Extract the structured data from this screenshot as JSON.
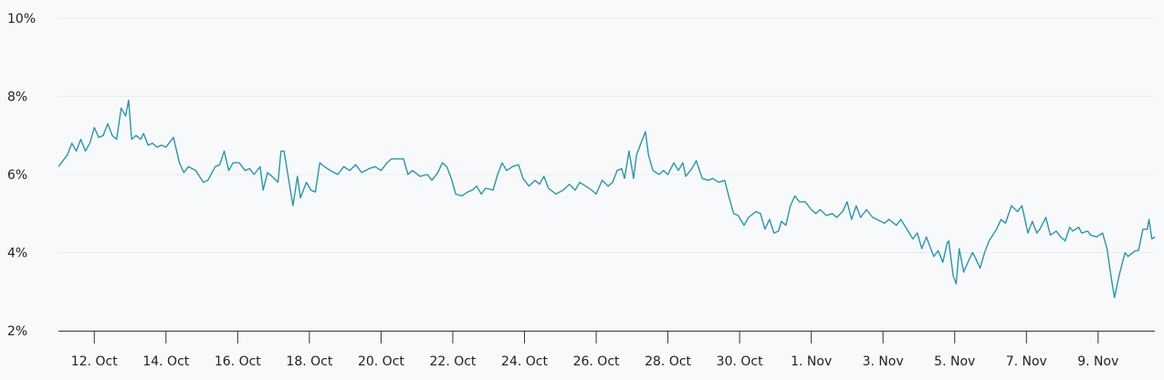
{
  "chart_data": {
    "type": "line",
    "title": "",
    "xlabel": "",
    "ylabel": "",
    "ylim": [
      2,
      10
    ],
    "y_ticks": [
      "2%",
      "4%",
      "6%",
      "8%",
      "10%"
    ],
    "y_tick_values": [
      2,
      4,
      6,
      8,
      10
    ],
    "x_ticks": [
      "12. Oct",
      "14. Oct",
      "16. Oct",
      "18. Oct",
      "20. Oct",
      "22. Oct",
      "24. Oct",
      "26. Oct",
      "28. Oct",
      "30. Oct",
      "1. Nov",
      "3. Nov",
      "5. Nov",
      "7. Nov",
      "9. Nov"
    ],
    "x_tick_dates": [
      "12 Oct",
      "14 Oct",
      "16 Oct",
      "18 Oct",
      "20 Oct",
      "22 Oct",
      "24 Oct",
      "26 Oct",
      "28 Oct",
      "30 Oct",
      "1 Nov",
      "3 Nov",
      "5 Nov",
      "7 Nov",
      "9 Nov"
    ],
    "xlim": [
      "11 Oct 00:00",
      "10 Nov 14:00"
    ],
    "grid": "horizontal",
    "line_color": "#2b96a8",
    "series": [
      {
        "points": [
          [
            "11 Oct 00:00",
            6.2
          ],
          [
            "11 Oct 06:00",
            6.5
          ],
          [
            "11 Oct 09:00",
            6.8
          ],
          [
            "11 Oct 12:00",
            6.6
          ],
          [
            "11 Oct 15:00",
            6.9
          ],
          [
            "11 Oct 18:00",
            6.6
          ],
          [
            "11 Oct 21:00",
            6.8
          ],
          [
            "12 Oct 00:00",
            7.2
          ],
          [
            "12 Oct 03:00",
            6.95
          ],
          [
            "12 Oct 06:00",
            7.0
          ],
          [
            "12 Oct 09:00",
            7.3
          ],
          [
            "12 Oct 12:00",
            7.0
          ],
          [
            "12 Oct 15:00",
            6.9
          ],
          [
            "12 Oct 18:00",
            7.7
          ],
          [
            "12 Oct 21:00",
            7.5
          ],
          [
            "12 Oct 23:00",
            7.9
          ],
          [
            "13 Oct 01:00",
            6.9
          ],
          [
            "13 Oct 04:00",
            7.0
          ],
          [
            "13 Oct 07:00",
            6.9
          ],
          [
            "13 Oct 09:00",
            7.05
          ],
          [
            "13 Oct 12:00",
            6.75
          ],
          [
            "13 Oct 15:00",
            6.8
          ],
          [
            "13 Oct 18:00",
            6.7
          ],
          [
            "13 Oct 21:00",
            6.75
          ],
          [
            "14 Oct 00:00",
            6.7
          ],
          [
            "14 Oct 05:00",
            6.95
          ],
          [
            "14 Oct 09:00",
            6.3
          ],
          [
            "14 Oct 12:00",
            6.05
          ],
          [
            "14 Oct 15:00",
            6.2
          ],
          [
            "14 Oct 20:00",
            6.1
          ],
          [
            "15 Oct 01:00",
            5.8
          ],
          [
            "15 Oct 04:00",
            5.85
          ],
          [
            "15 Oct 09:00",
            6.2
          ],
          [
            "15 Oct 12:00",
            6.25
          ],
          [
            "15 Oct 15:00",
            6.6
          ],
          [
            "15 Oct 18:00",
            6.1
          ],
          [
            "15 Oct 21:00",
            6.3
          ],
          [
            "16 Oct 01:00",
            6.3
          ],
          [
            "16 Oct 05:00",
            6.1
          ],
          [
            "16 Oct 08:00",
            6.15
          ],
          [
            "16 Oct 11:00",
            6.0
          ],
          [
            "16 Oct 15:00",
            6.2
          ],
          [
            "16 Oct 17:00",
            5.6
          ],
          [
            "16 Oct 20:00",
            6.05
          ],
          [
            "16 Oct 23:00",
            5.95
          ],
          [
            "17 Oct 03:00",
            5.8
          ],
          [
            "17 Oct 05:00",
            6.6
          ],
          [
            "17 Oct 07:00",
            6.6
          ],
          [
            "17 Oct 10:00",
            5.9
          ],
          [
            "17 Oct 13:00",
            5.2
          ],
          [
            "17 Oct 16:00",
            5.95
          ],
          [
            "17 Oct 18:00",
            5.4
          ],
          [
            "17 Oct 22:00",
            5.8
          ],
          [
            "18 Oct 01:00",
            5.6
          ],
          [
            "18 Oct 04:00",
            5.55
          ],
          [
            "18 Oct 07:00",
            6.3
          ],
          [
            "18 Oct 10:00",
            6.2
          ],
          [
            "18 Oct 14:00",
            6.1
          ],
          [
            "18 Oct 19:00",
            6.0
          ],
          [
            "18 Oct 23:00",
            6.2
          ],
          [
            "19 Oct 03:00",
            6.1
          ],
          [
            "19 Oct 07:00",
            6.25
          ],
          [
            "19 Oct 11:00",
            6.05
          ],
          [
            "19 Oct 16:00",
            6.15
          ],
          [
            "19 Oct 20:00",
            6.2
          ],
          [
            "20 Oct 00:00",
            6.1
          ],
          [
            "20 Oct 04:00",
            6.3
          ],
          [
            "20 Oct 07:00",
            6.4
          ],
          [
            "20 Oct 11:00",
            6.4
          ],
          [
            "20 Oct 15:00",
            6.4
          ],
          [
            "20 Oct 18:00",
            6.0
          ],
          [
            "20 Oct 21:00",
            6.1
          ],
          [
            "21 Oct 02:00",
            5.95
          ],
          [
            "21 Oct 07:00",
            6.0
          ],
          [
            "21 Oct 10:00",
            5.85
          ],
          [
            "21 Oct 14:00",
            6.05
          ],
          [
            "21 Oct 17:00",
            6.3
          ],
          [
            "21 Oct 20:00",
            6.2
          ],
          [
            "21 Oct 23:00",
            5.9
          ],
          [
            "22 Oct 02:00",
            5.5
          ],
          [
            "22 Oct 06:00",
            5.45
          ],
          [
            "22 Oct 10:00",
            5.55
          ],
          [
            "22 Oct 13:00",
            5.6
          ],
          [
            "22 Oct 16:00",
            5.7
          ],
          [
            "22 Oct 19:00",
            5.5
          ],
          [
            "22 Oct 22:00",
            5.65
          ],
          [
            "23 Oct 03:00",
            5.6
          ],
          [
            "23 Oct 06:00",
            6.0
          ],
          [
            "23 Oct 09:00",
            6.3
          ],
          [
            "23 Oct 12:00",
            6.1
          ],
          [
            "23 Oct 16:00",
            6.2
          ],
          [
            "23 Oct 20:00",
            6.25
          ],
          [
            "23 Oct 23:00",
            5.9
          ],
          [
            "24 Oct 03:00",
            5.7
          ],
          [
            "24 Oct 07:00",
            5.85
          ],
          [
            "24 Oct 10:00",
            5.75
          ],
          [
            "24 Oct 13:00",
            5.95
          ],
          [
            "24 Oct 16:00",
            5.65
          ],
          [
            "24 Oct 21:00",
            5.5
          ],
          [
            "25 Oct 02:00",
            5.6
          ],
          [
            "25 Oct 06:00",
            5.75
          ],
          [
            "25 Oct 10:00",
            5.6
          ],
          [
            "25 Oct 13:00",
            5.8
          ],
          [
            "25 Oct 17:00",
            5.7
          ],
          [
            "25 Oct 21:00",
            5.6
          ],
          [
            "26 Oct 00:00",
            5.5
          ],
          [
            "26 Oct 04:00",
            5.85
          ],
          [
            "26 Oct 08:00",
            5.7
          ],
          [
            "26 Oct 11:00",
            5.8
          ],
          [
            "26 Oct 14:00",
            6.1
          ],
          [
            "26 Oct 17:00",
            6.15
          ],
          [
            "26 Oct 19:00",
            5.9
          ],
          [
            "26 Oct 22:00",
            6.6
          ],
          [
            "27 Oct 01:00",
            5.9
          ],
          [
            "27 Oct 03:00",
            6.5
          ],
          [
            "27 Oct 06:00",
            6.8
          ],
          [
            "27 Oct 09:00",
            7.1
          ],
          [
            "27 Oct 11:00",
            6.5
          ],
          [
            "27 Oct 14:00",
            6.1
          ],
          [
            "27 Oct 18:00",
            6.0
          ],
          [
            "27 Oct 21:00",
            6.1
          ],
          [
            "28 Oct 00:00",
            6.0
          ],
          [
            "28 Oct 04:00",
            6.3
          ],
          [
            "28 Oct 07:00",
            6.1
          ],
          [
            "28 Oct 10:00",
            6.3
          ],
          [
            "28 Oct 12:00",
            5.95
          ],
          [
            "28 Oct 16:00",
            6.15
          ],
          [
            "28 Oct 19:00",
            6.35
          ],
          [
            "28 Oct 23:00",
            5.9
          ],
          [
            "29 Oct 03:00",
            5.85
          ],
          [
            "29 Oct 06:00",
            5.9
          ],
          [
            "29 Oct 10:00",
            5.8
          ],
          [
            "29 Oct 14:00",
            5.85
          ],
          [
            "29 Oct 17:00",
            5.4
          ],
          [
            "29 Oct 20:00",
            5.0
          ],
          [
            "29 Oct 23:00",
            4.95
          ],
          [
            "30 Oct 03:00",
            4.7
          ],
          [
            "30 Oct 06:00",
            4.9
          ],
          [
            "30 Oct 11:00",
            5.05
          ],
          [
            "30 Oct 14:00",
            5.0
          ],
          [
            "30 Oct 17:00",
            4.6
          ],
          [
            "30 Oct 20:00",
            4.85
          ],
          [
            "30 Oct 23:00",
            4.5
          ],
          [
            "31 Oct 02:00",
            4.55
          ],
          [
            "31 Oct 04:00",
            4.8
          ],
          [
            "31 Oct 07:00",
            4.7
          ],
          [
            "31 Oct 10:00",
            5.2
          ],
          [
            "31 Oct 13:00",
            5.45
          ],
          [
            "31 Oct 16:00",
            5.3
          ],
          [
            "31 Oct 20:00",
            5.3
          ],
          [
            "1 Nov 00:00",
            5.1
          ],
          [
            "1 Nov 03:00",
            5.0
          ],
          [
            "1 Nov 06:00",
            5.1
          ],
          [
            "1 Nov 10:00",
            4.95
          ],
          [
            "1 Nov 14:00",
            5.0
          ],
          [
            "1 Nov 17:00",
            4.9
          ],
          [
            "1 Nov 21:00",
            5.05
          ],
          [
            "2 Nov 00:00",
            5.3
          ],
          [
            "2 Nov 03:00",
            4.85
          ],
          [
            "2 Nov 06:00",
            5.2
          ],
          [
            "2 Nov 09:00",
            4.9
          ],
          [
            "2 Nov 13:00",
            5.1
          ],
          [
            "2 Nov 17:00",
            4.9
          ],
          [
            "2 Nov 20:00",
            4.85
          ],
          [
            "3 Nov 01:00",
            4.75
          ],
          [
            "3 Nov 04:00",
            4.85
          ],
          [
            "3 Nov 09:00",
            4.7
          ],
          [
            "3 Nov 12:00",
            4.85
          ],
          [
            "3 Nov 16:00",
            4.6
          ],
          [
            "3 Nov 20:00",
            4.35
          ],
          [
            "3 Nov 23:00",
            4.5
          ],
          [
            "4 Nov 02:00",
            4.1
          ],
          [
            "4 Nov 05:00",
            4.4
          ],
          [
            "4 Nov 07:00",
            4.2
          ],
          [
            "4 Nov 10:00",
            3.9
          ],
          [
            "4 Nov 13:00",
            4.05
          ],
          [
            "4 Nov 16:00",
            3.75
          ],
          [
            "4 Nov 19:00",
            4.25
          ],
          [
            "4 Nov 20:00",
            4.3
          ],
          [
            "4 Nov 23:00",
            3.4
          ],
          [
            "5 Nov 01:00",
            3.2
          ],
          [
            "5 Nov 03:00",
            4.1
          ],
          [
            "5 Nov 06:00",
            3.5
          ],
          [
            "5 Nov 10:00",
            3.85
          ],
          [
            "5 Nov 12:00",
            4.0
          ],
          [
            "5 Nov 14:00",
            3.85
          ],
          [
            "5 Nov 17:00",
            3.6
          ],
          [
            "5 Nov 20:00",
            4.0
          ],
          [
            "5 Nov 23:00",
            4.3
          ],
          [
            "6 Nov 04:00",
            4.6
          ],
          [
            "6 Nov 07:00",
            4.85
          ],
          [
            "6 Nov 10:00",
            4.75
          ],
          [
            "6 Nov 14:00",
            5.2
          ],
          [
            "6 Nov 18:00",
            5.05
          ],
          [
            "6 Nov 21:00",
            5.2
          ],
          [
            "7 Nov 01:00",
            4.5
          ],
          [
            "7 Nov 04:00",
            4.8
          ],
          [
            "7 Nov 07:00",
            4.5
          ],
          [
            "7 Nov 09:00",
            4.6
          ],
          [
            "7 Nov 13:00",
            4.9
          ],
          [
            "7 Nov 16:00",
            4.45
          ],
          [
            "7 Nov 20:00",
            4.55
          ],
          [
            "7 Nov 23:00",
            4.4
          ],
          [
            "8 Nov 02:00",
            4.3
          ],
          [
            "8 Nov 05:00",
            4.65
          ],
          [
            "8 Nov 07:00",
            4.55
          ],
          [
            "8 Nov 11:00",
            4.65
          ],
          [
            "8 Nov 13:00",
            4.5
          ],
          [
            "8 Nov 17:00",
            4.55
          ],
          [
            "8 Nov 19:00",
            4.45
          ],
          [
            "8 Nov 23:00",
            4.4
          ],
          [
            "9 Nov 03:00",
            4.5
          ],
          [
            "9 Nov 06:00",
            4.1
          ],
          [
            "9 Nov 09:00",
            3.3
          ],
          [
            "9 Nov 11:00",
            2.85
          ],
          [
            "9 Nov 14:00",
            3.4
          ],
          [
            "9 Nov 16:00",
            3.7
          ],
          [
            "9 Nov 18:00",
            4.0
          ],
          [
            "9 Nov 20:00",
            3.9
          ],
          [
            "10 Nov 01:00",
            4.05
          ],
          [
            "10 Nov 03:00",
            4.05
          ],
          [
            "10 Nov 06:00",
            4.6
          ],
          [
            "10 Nov 09:00",
            4.6
          ],
          [
            "10 Nov 10:00",
            4.85
          ],
          [
            "10 Nov 12:00",
            4.35
          ],
          [
            "10 Nov 14:00",
            4.4
          ]
        ]
      }
    ]
  }
}
